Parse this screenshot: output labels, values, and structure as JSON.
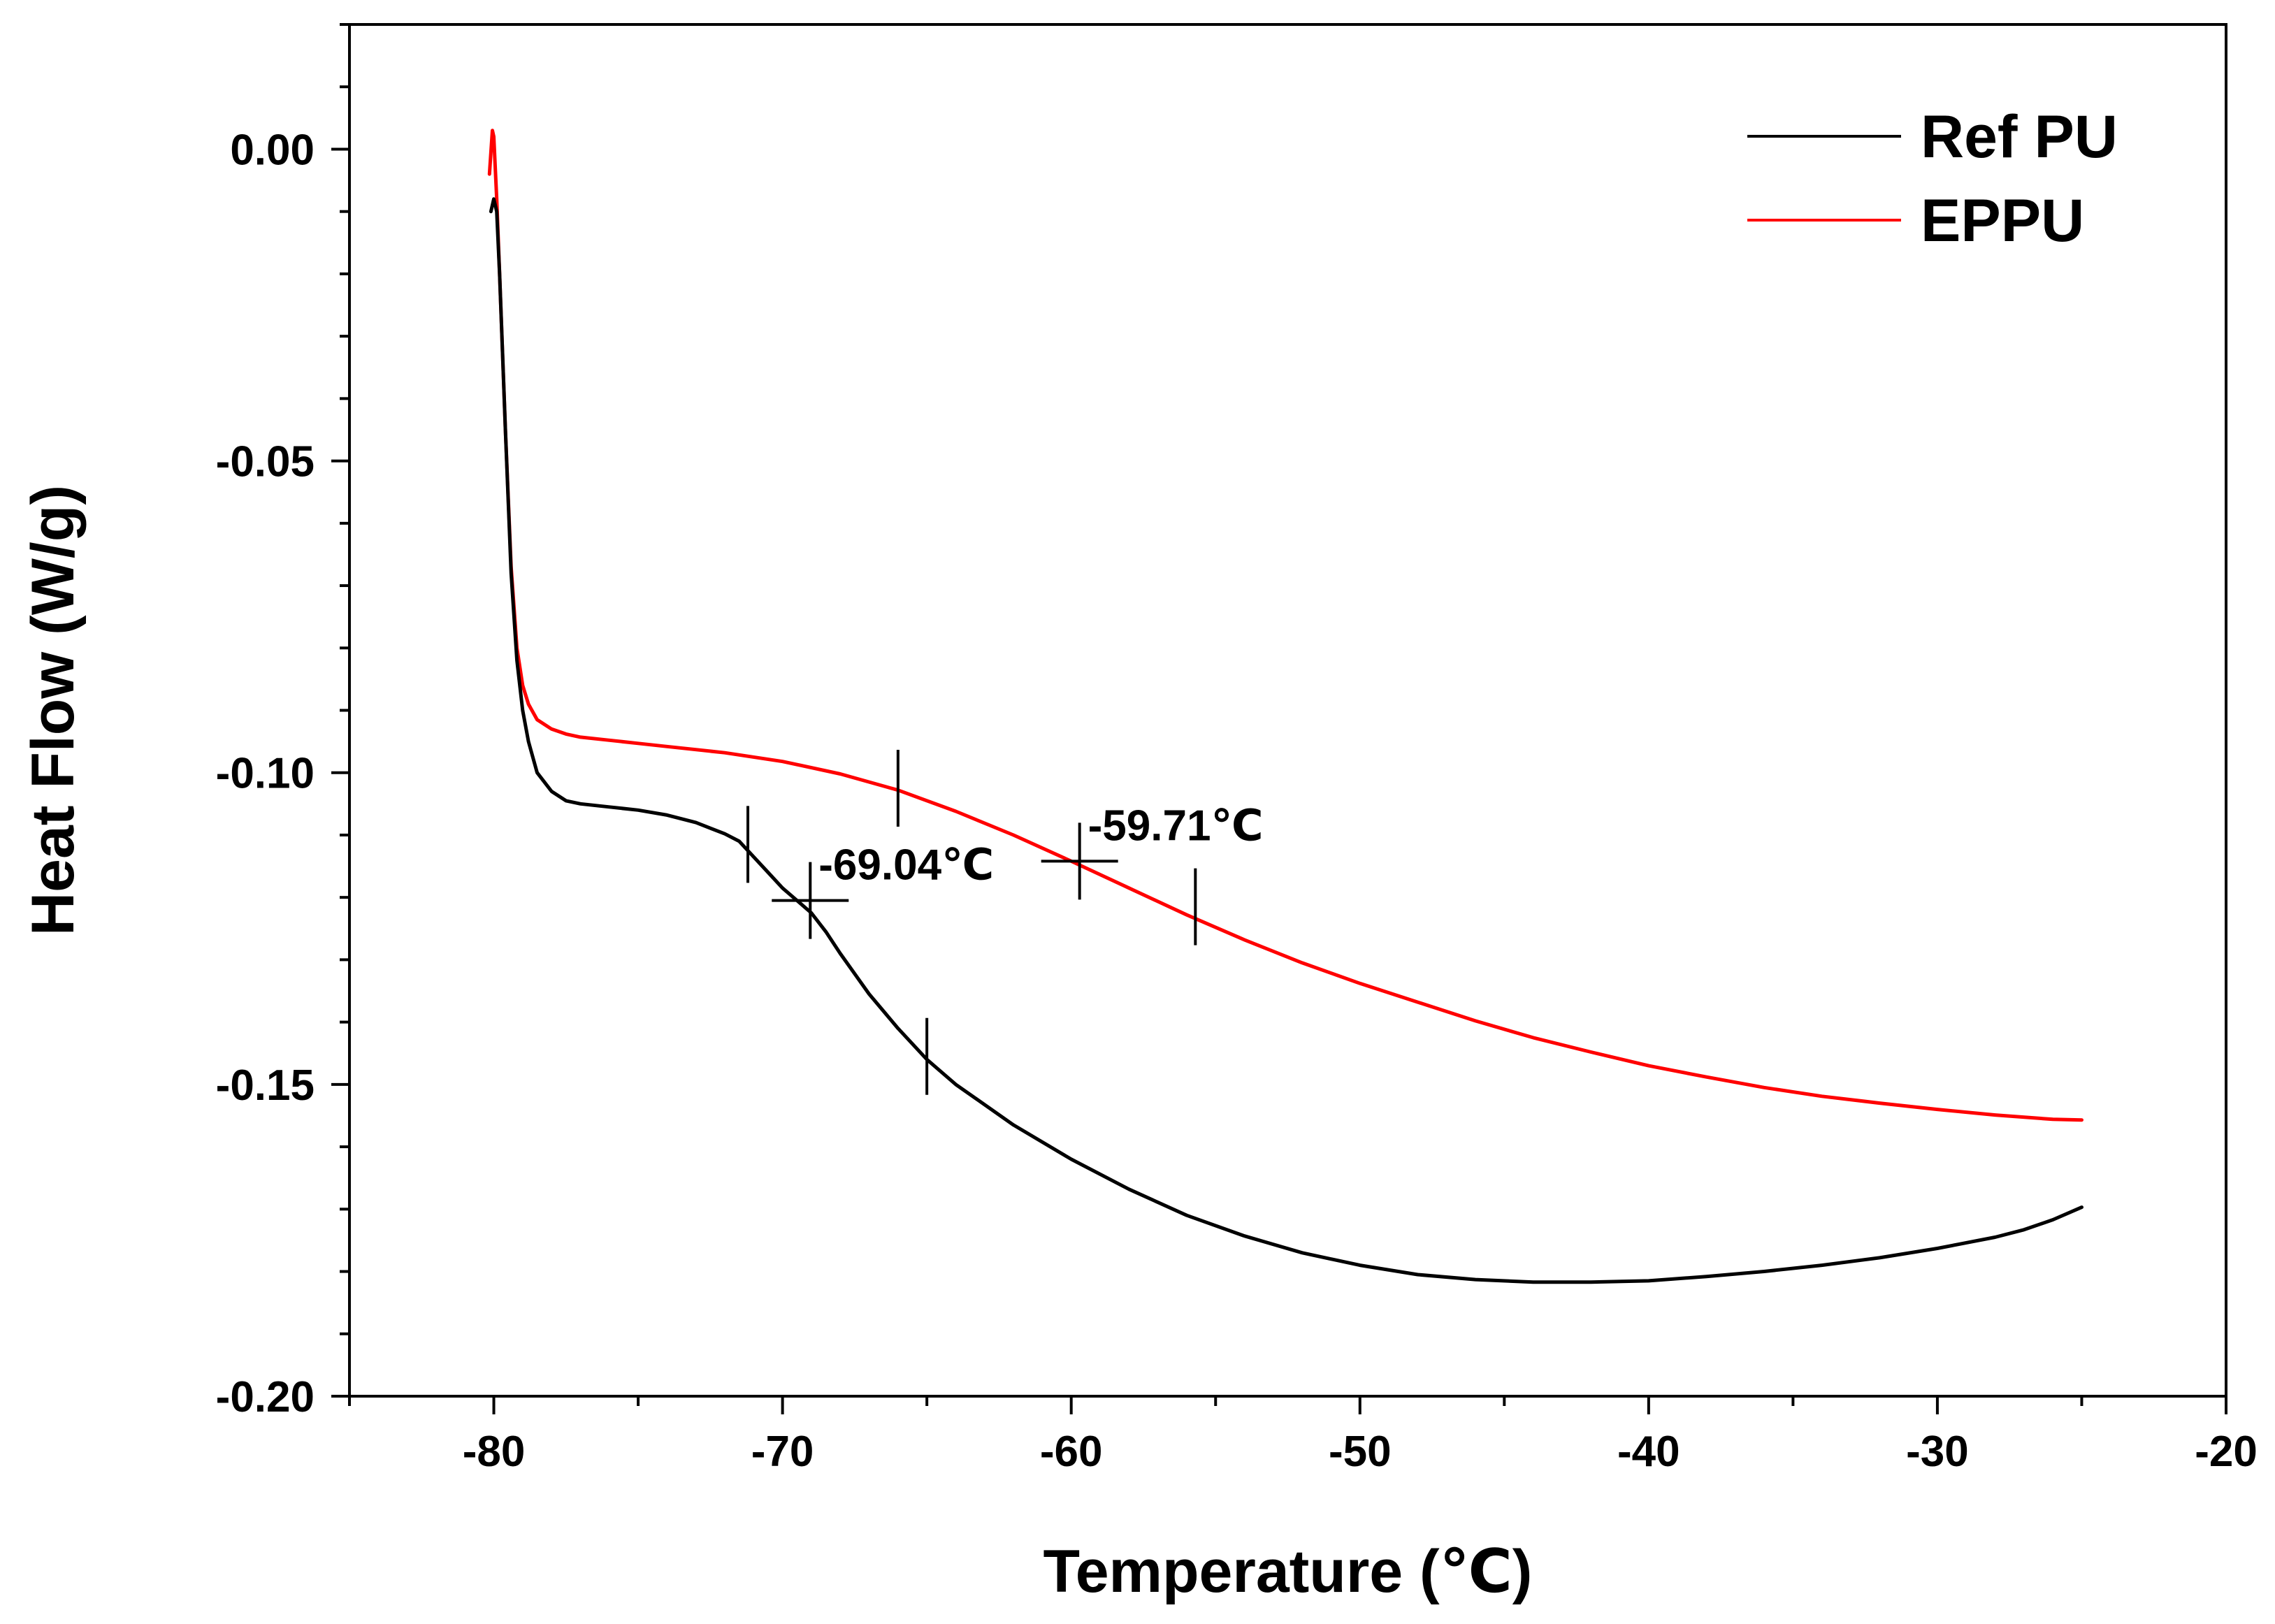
{
  "chart_data": {
    "type": "line",
    "title": "",
    "xlabel": "Temperature (℃)",
    "ylabel": "Heat Flow (W/g)",
    "xlim": [
      -85,
      -20
    ],
    "ylim": [
      -0.2,
      0.02
    ],
    "x_ticks": [
      -80,
      -70,
      -60,
      -50,
      -40,
      -30,
      -20
    ],
    "x_tick_labels": [
      "-80",
      "-70",
      "-60",
      "-50",
      "-40",
      "-30",
      "-20"
    ],
    "y_ticks": [
      0.0,
      -0.05,
      -0.1,
      -0.15,
      -0.2
    ],
    "y_tick_labels": [
      "0.00",
      "-0.05",
      "-0.10",
      "-0.15",
      "-0.20"
    ],
    "grid": false,
    "legend_position": "top-right",
    "series": [
      {
        "name": "Ref PU",
        "color": "#000000",
        "x": [
          -80.1,
          -80.0,
          -79.9,
          -79.8,
          -79.6,
          -79.4,
          -79.2,
          -79.0,
          -78.8,
          -78.5,
          -78.0,
          -77.5,
          -77.0,
          -76.0,
          -75.0,
          -74.0,
          -73.0,
          -72.0,
          -71.5,
          -71.0,
          -70.5,
          -70.0,
          -69.5,
          -69.0,
          -68.5,
          -68.0,
          -67.0,
          -66.0,
          -65.0,
          -64.0,
          -62.0,
          -60.0,
          -58.0,
          -56.0,
          -54.0,
          -52.0,
          -50.0,
          -48.0,
          -46.0,
          -44.0,
          -42.0,
          -40.0,
          -38.0,
          -36.0,
          -34.0,
          -32.0,
          -30.0,
          -28.0,
          -27.0,
          -26.0,
          -25.0
        ],
        "values": [
          -0.01,
          -0.008,
          -0.01,
          -0.02,
          -0.045,
          -0.068,
          -0.082,
          -0.09,
          -0.095,
          -0.1,
          -0.103,
          -0.1045,
          -0.105,
          -0.1055,
          -0.106,
          -0.1068,
          -0.108,
          -0.1098,
          -0.111,
          -0.1135,
          -0.116,
          -0.1185,
          -0.1205,
          -0.1225,
          -0.1255,
          -0.129,
          -0.1355,
          -0.141,
          -0.146,
          -0.15,
          -0.1565,
          -0.162,
          -0.1668,
          -0.171,
          -0.1743,
          -0.177,
          -0.179,
          -0.1805,
          -0.1813,
          -0.1817,
          -0.1817,
          -0.1815,
          -0.1808,
          -0.18,
          -0.179,
          -0.1778,
          -0.1763,
          -0.1745,
          -0.1733,
          -0.1717,
          -0.1697
        ]
      },
      {
        "name": "EPPU",
        "color": "#ff0000",
        "x": [
          -80.15,
          -80.05,
          -80.0,
          -79.9,
          -79.8,
          -79.6,
          -79.4,
          -79.2,
          -79.0,
          -78.8,
          -78.5,
          -78.0,
          -77.5,
          -77.0,
          -76.0,
          -75.0,
          -74.0,
          -72.0,
          -70.0,
          -68.0,
          -66.0,
          -64.0,
          -62.0,
          -60.0,
          -58.0,
          -56.0,
          -54.0,
          -52.0,
          -50.0,
          -48.0,
          -46.0,
          -44.0,
          -42.0,
          -40.0,
          -38.0,
          -36.0,
          -34.0,
          -32.0,
          -30.0,
          -28.0,
          -26.0,
          -25.0
        ],
        "values": [
          -0.004,
          0.003,
          0.002,
          -0.008,
          -0.02,
          -0.045,
          -0.067,
          -0.08,
          -0.086,
          -0.089,
          -0.0915,
          -0.093,
          -0.0938,
          -0.0943,
          -0.0948,
          -0.0953,
          -0.0958,
          -0.0968,
          -0.0982,
          -0.1002,
          -0.1028,
          -0.1062,
          -0.11,
          -0.1142,
          -0.1185,
          -0.1228,
          -0.1268,
          -0.1305,
          -0.1338,
          -0.1368,
          -0.1398,
          -0.1425,
          -0.1448,
          -0.147,
          -0.1488,
          -0.1505,
          -0.1519,
          -0.153,
          -0.154,
          -0.1549,
          -0.1556,
          -0.1557
        ]
      }
    ],
    "markers": [
      {
        "name": "ref-onset",
        "x": -71.2,
        "y": -0.1115,
        "type": "tick"
      },
      {
        "name": "ref-tg",
        "x": -69.04,
        "y": -0.1205,
        "type": "cross"
      },
      {
        "name": "ref-end",
        "x": -65.0,
        "y": -0.1455,
        "type": "tick"
      },
      {
        "name": "eppu-onset",
        "x": -66.0,
        "y": -0.1025,
        "type": "tick"
      },
      {
        "name": "eppu-tg",
        "x": -59.71,
        "y": -0.1142,
        "type": "cross"
      },
      {
        "name": "eppu-end",
        "x": -55.7,
        "y": -0.1215,
        "type": "tick"
      }
    ],
    "annotations": [
      {
        "name": "ref-tg",
        "text": "-69.04℃",
        "x": -69.04,
        "y": -0.1205
      },
      {
        "name": "eppu-tg",
        "text": "-59.71℃",
        "x": -59.71,
        "y": -0.1142
      }
    ]
  }
}
